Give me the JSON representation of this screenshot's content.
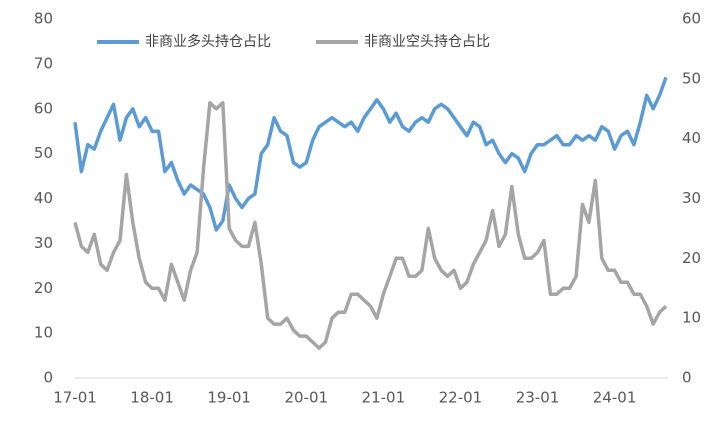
{
  "chart_data": {
    "type": "line",
    "categories": [
      "17-01",
      null,
      null,
      null,
      null,
      null,
      null,
      null,
      null,
      null,
      null,
      null,
      "18-01",
      null,
      null,
      null,
      null,
      null,
      null,
      null,
      null,
      null,
      null,
      null,
      "19-01",
      null,
      null,
      null,
      null,
      null,
      null,
      null,
      null,
      null,
      null,
      null,
      "20-01",
      null,
      null,
      null,
      null,
      null,
      null,
      null,
      null,
      null,
      null,
      null,
      "21-01",
      null,
      null,
      null,
      null,
      null,
      null,
      null,
      null,
      null,
      null,
      null,
      "22-01",
      null,
      null,
      null,
      null,
      null,
      null,
      null,
      null,
      null,
      null,
      null,
      "23-01",
      null,
      null,
      null,
      null,
      null,
      null,
      null,
      null,
      null,
      null,
      null,
      "24-01",
      null,
      null,
      null,
      null,
      null,
      null,
      null,
      null
    ],
    "series": [
      {
        "name": "非商业多头持仓占比",
        "color": "#5b9bd5",
        "values": [
          57,
          46,
          52,
          51,
          55,
          58,
          61,
          53,
          58,
          60,
          56,
          58,
          55,
          55,
          46,
          48,
          44,
          41,
          43,
          42,
          41,
          38,
          33,
          35,
          43,
          40,
          38,
          40,
          41,
          50,
          52,
          58,
          55,
          54,
          48,
          47,
          48,
          53,
          56,
          57,
          58,
          57,
          56,
          57,
          55,
          58,
          60,
          62,
          60,
          57,
          59,
          56,
          55,
          57,
          58,
          57,
          60,
          61,
          60,
          58,
          56,
          54,
          57,
          56,
          52,
          53,
          50,
          48,
          50,
          49,
          46,
          50,
          52,
          52,
          53,
          54,
          52,
          52,
          54,
          53,
          54,
          53,
          56,
          55,
          51,
          54,
          55,
          52,
          57,
          63,
          60,
          63,
          67
        ]
      },
      {
        "name": "非商业空头持仓占比",
        "color": "#a5a5a5",
        "axis": "y2",
        "values": [
          26,
          22,
          21,
          24,
          19,
          18,
          21,
          23,
          34,
          26,
          20,
          16,
          15,
          15,
          13,
          19,
          16,
          13,
          18,
          21,
          35,
          46,
          45,
          46,
          25,
          23,
          22,
          22,
          26,
          19,
          10,
          9,
          9,
          10,
          8,
          7,
          7,
          6,
          5,
          6,
          10,
          11,
          11,
          14,
          14,
          13,
          12,
          10,
          14,
          17,
          20,
          20,
          17,
          17,
          18,
          25,
          20,
          18,
          17,
          18,
          15,
          16,
          19,
          21,
          23,
          28,
          22,
          24,
          32,
          24,
          20,
          20,
          21,
          23,
          14,
          14,
          15,
          15,
          17,
          29,
          26,
          33,
          20,
          18,
          18,
          16,
          16,
          14,
          14,
          12,
          9,
          11,
          12
        ]
      }
    ],
    "ylim": [
      0,
      80
    ],
    "yticks": [
      0,
      10,
      20,
      30,
      40,
      50,
      60,
      70,
      80
    ],
    "y2lim": [
      0,
      60
    ],
    "y2ticks": [
      0,
      10,
      20,
      30,
      40,
      50,
      60
    ],
    "grid": false
  }
}
